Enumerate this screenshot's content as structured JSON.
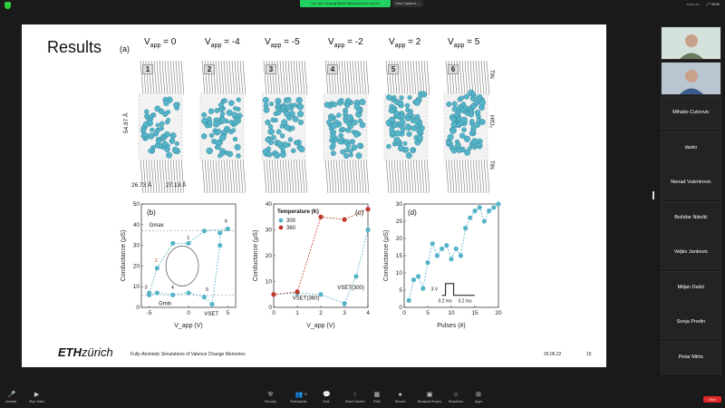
{
  "top_bar": {
    "share_banner": "You are viewing Mirko Mladenovic's screen",
    "view_options": "View Options ⌄",
    "right_items": [
      "▭▭ ▭",
      "⤢ View"
    ]
  },
  "slide": {
    "title": "Results",
    "panel_a_label": "(a)",
    "snapshots": [
      {
        "num": "1",
        "vlabel": "V",
        "vsub": "app",
        "vval": " = 0"
      },
      {
        "num": "2",
        "vlabel": "V",
        "vsub": "app",
        "vval": " = -4"
      },
      {
        "num": "3",
        "vlabel": "V",
        "vsub": "app",
        "vval": " = -5"
      },
      {
        "num": "4",
        "vlabel": "V",
        "vsub": "app",
        "vval": " = -2"
      },
      {
        "num": "5",
        "vlabel": "V",
        "vsub": "app",
        "vval": " = 2"
      },
      {
        "num": "6",
        "vlabel": "V",
        "vsub": "app",
        "vval": " = 5"
      }
    ],
    "dim_vertical": "54.97 Å",
    "dim_h1": "26.73 Å",
    "dim_h2": "27.13 Å",
    "side_labels": {
      "tin_top": "TiN",
      "hfo": "HfO₂",
      "tin_bottom": "TiN"
    },
    "footer_logo_bold": "ETH",
    "footer_logo_rest": "zürich",
    "footer_text": "Fully-Atomistic Simulations of Valence Change Memories",
    "footer_date": "26.05.22",
    "footer_page": "15"
  },
  "colors": {
    "teal": "#56b4c9",
    "red": "#c0392b",
    "dash": "#999999"
  },
  "chart_data": [
    {
      "type": "line",
      "panel": "(b)",
      "xlabel": "V_app (V)",
      "ylabel": "Conductance (μS)",
      "xlim": [
        -6,
        6
      ],
      "ylim": [
        0,
        50
      ],
      "xticks": [
        -5,
        0,
        5
      ],
      "yticks": [
        0,
        10,
        20,
        30,
        40,
        50
      ],
      "series": [
        {
          "values": [
            [
              -5,
              6
            ],
            [
              -4,
              7
            ],
            [
              -2,
              6
            ],
            [
              0,
              7
            ],
            [
              2,
              5
            ],
            [
              3,
              1.5
            ],
            [
              4,
              30
            ],
            [
              4,
              36
            ],
            [
              5,
              38
            ],
            [
              2,
              37
            ],
            [
              0,
              31
            ],
            [
              -2,
              31
            ],
            [
              -4,
              19
            ],
            [
              -5,
              7
            ]
          ]
        }
      ],
      "annotations": [
        "G",
        "max",
        "G",
        "min",
        "V",
        "SET",
        "1",
        "2",
        "3",
        "4",
        "5",
        "6"
      ],
      "gmax": 37,
      "gmin": 6
    },
    {
      "type": "line",
      "panel": "(c)",
      "xlabel": "V_app (V)",
      "ylabel": "Conductance (μS)",
      "xlim": [
        0,
        4
      ],
      "ylim": [
        0,
        40
      ],
      "xticks": [
        0,
        1,
        2,
        3,
        4
      ],
      "yticks": [
        0,
        10,
        20,
        30,
        40
      ],
      "legend_title": "Temperature (K)",
      "series": [
        {
          "name": "300",
          "color": "#56b4c9",
          "x": [
            0,
            1,
            2,
            3,
            3.5,
            4
          ],
          "values": [
            5,
            5.5,
            5,
            1.5,
            12,
            30
          ]
        },
        {
          "name": "360",
          "color": "#c0392b",
          "x": [
            0,
            1,
            2,
            3,
            4
          ],
          "values": [
            5,
            6,
            35,
            34,
            38
          ]
        }
      ],
      "annotations": [
        "V",
        "SET",
        "(360)",
        "V",
        "SET",
        "(300)"
      ]
    },
    {
      "type": "line",
      "panel": "(d)",
      "xlabel": "Pulses (#)",
      "ylabel": "Conductance (μS)",
      "xlim": [
        0,
        20
      ],
      "ylim": [
        0,
        30
      ],
      "xticks": [
        0,
        5,
        10,
        15,
        20
      ],
      "yticks": [
        0,
        5,
        10,
        15,
        20,
        25,
        30
      ],
      "series": [
        {
          "x": [
            1,
            2,
            3,
            4,
            5,
            6,
            7,
            8,
            9,
            10,
            11,
            12,
            13,
            14,
            15,
            16,
            17,
            18,
            19,
            20
          ],
          "values": [
            2,
            8,
            9,
            5.5,
            13,
            18.5,
            15,
            17,
            18,
            14,
            17,
            15,
            23,
            26,
            28,
            29,
            25,
            28,
            29,
            30
          ]
        }
      ],
      "inset": {
        "amplitude": "3 V",
        "width1": "0.2 ms",
        "width2": "0.2 ms"
      }
    }
  ],
  "participants": [
    {
      "name": "",
      "video": true
    },
    {
      "name": "",
      "video": true
    },
    {
      "name": "Mihailo Cubrovic",
      "video": false
    },
    {
      "name": "darko",
      "video": false
    },
    {
      "name": "Nenad Vukmirovic",
      "video": false
    },
    {
      "name": "Božidar Nikolić",
      "video": false
    },
    {
      "name": "Veljko Jankovic",
      "video": false
    },
    {
      "name": "Miljan Dašić",
      "video": false
    },
    {
      "name": "Sonja Predin",
      "video": false
    },
    {
      "name": "Petar Mitric",
      "video": false
    }
  ],
  "toolbar": {
    "left": [
      {
        "label": "Unmute",
        "icon": "🎤"
      },
      {
        "label": "Stop Video",
        "icon": "▶"
      }
    ],
    "center": [
      {
        "label": "Security",
        "icon": "⛨"
      },
      {
        "label": "Participants",
        "icon": "👥"
      },
      {
        "label": "Chat",
        "icon": "💬"
      },
      {
        "label": "Share Screen",
        "icon": "↑"
      },
      {
        "label": "Polls",
        "icon": "▦"
      },
      {
        "label": "Record",
        "icon": "●"
      },
      {
        "label": "Breakout Rooms",
        "icon": "▣"
      },
      {
        "label": "Reactions",
        "icon": "☺"
      },
      {
        "label": "Apps",
        "icon": "⊞"
      }
    ],
    "participants_count": "10",
    "end_label": "End"
  }
}
